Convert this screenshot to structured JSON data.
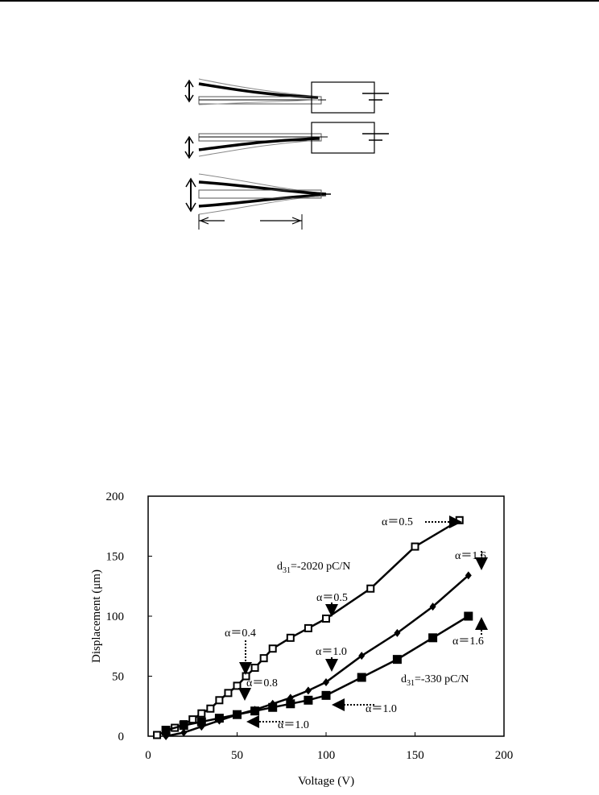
{
  "chart_data": {
    "type": "line",
    "title": "",
    "xlabel": "Voltage (V)",
    "ylabel": "Displacement (μm)",
    "xlim": [
      0,
      200
    ],
    "ylim": [
      0,
      200
    ],
    "xticks": [
      "0",
      "50",
      "100",
      "150",
      "200"
    ],
    "yticks": [
      "0",
      "50",
      "100",
      "150",
      "200"
    ],
    "grid": false,
    "legend": "none",
    "series": [
      {
        "marker": "open-square",
        "points": [
          [
            5,
            1
          ],
          [
            10,
            4
          ],
          [
            15,
            7
          ],
          [
            20,
            10
          ],
          [
            25,
            14
          ],
          [
            30,
            19
          ],
          [
            35,
            23
          ],
          [
            40,
            30
          ],
          [
            45,
            36
          ],
          [
            50,
            42
          ],
          [
            55,
            50
          ],
          [
            60,
            57
          ],
          [
            65,
            65
          ],
          [
            70,
            73
          ],
          [
            80,
            82
          ],
          [
            90,
            90
          ],
          [
            100,
            98
          ],
          [
            125,
            123
          ],
          [
            150,
            158
          ],
          [
            175,
            180
          ]
        ]
      },
      {
        "marker": "filled-diamond",
        "points": [
          [
            10,
            0
          ],
          [
            20,
            3
          ],
          [
            30,
            8
          ],
          [
            40,
            13
          ],
          [
            50,
            18
          ],
          [
            60,
            22
          ],
          [
            70,
            27
          ],
          [
            80,
            32
          ],
          [
            90,
            38
          ],
          [
            100,
            45
          ],
          [
            120,
            67
          ],
          [
            140,
            86
          ],
          [
            160,
            108
          ],
          [
            180,
            134
          ]
        ]
      },
      {
        "marker": "filled-square",
        "points": [
          [
            10,
            5
          ],
          [
            20,
            9
          ],
          [
            30,
            12
          ],
          [
            40,
            15
          ],
          [
            50,
            18
          ],
          [
            60,
            21
          ],
          [
            70,
            24
          ],
          [
            80,
            27
          ],
          [
            90,
            30
          ],
          [
            100,
            34
          ],
          [
            120,
            49
          ],
          [
            140,
            64
          ],
          [
            160,
            82
          ],
          [
            180,
            100
          ]
        ]
      }
    ],
    "annotations": [
      {
        "text": "α＝0.5",
        "id": "a05-top"
      },
      {
        "text": "α＝1.6",
        "id": "a16-top"
      },
      {
        "text": "-2020 pC/N",
        "id": "d31-2020"
      },
      {
        "text": "α＝0.5",
        "id": "a05-mid"
      },
      {
        "text": "α＝0.4",
        "id": "a04"
      },
      {
        "text": "α＝1.0",
        "id": "a10-mid"
      },
      {
        "text": "α＝1.6",
        "id": "a16-low"
      },
      {
        "text": "α＝0.8",
        "id": "a08"
      },
      {
        "text": "-330 pC/N",
        "id": "d31-330"
      },
      {
        "text": "α＝1.0",
        "id": "a10-right"
      },
      {
        "text": "α＝1.0",
        "id": "a10-bottom"
      }
    ],
    "d_prefix": "d",
    "d_sub": "31",
    "d_eq": "="
  }
}
